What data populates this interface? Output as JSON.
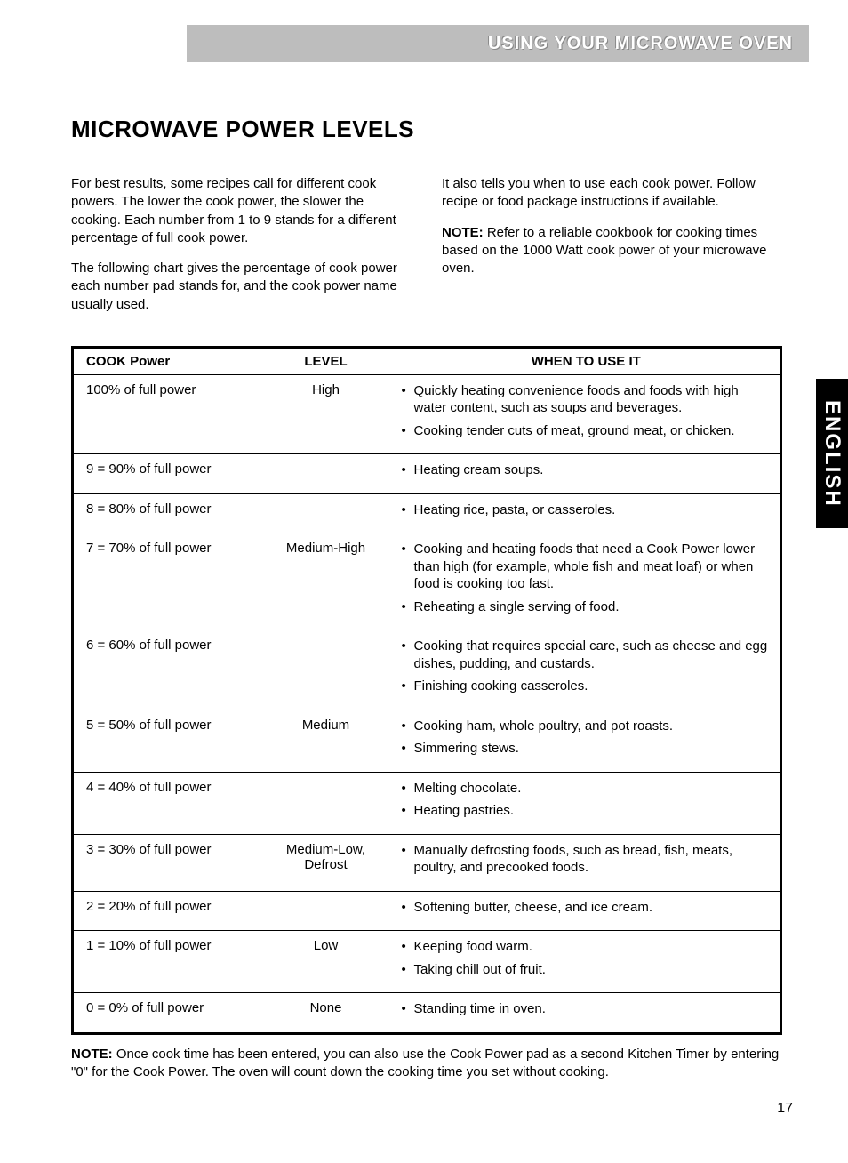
{
  "header": {
    "banner": "USING YOUR MICROWAVE OVEN"
  },
  "title": "MICROWAVE POWER LEVELS",
  "intro": {
    "left": [
      "For best results, some recipes call for different cook powers. The lower the cook power, the slower the cooking. Each number from 1 to 9 stands for a different percentage of full cook power.",
      "The following chart gives the percentage of cook power each number pad stands for, and the cook power name usually used."
    ],
    "right_p1": "It also tells you when to use each cook power.  Follow recipe or food package instructions if available.",
    "right_note_label": "NOTE:",
    "right_note_text": " Refer to a reliable cookbook for cooking times based on the 1000 Watt cook power of your microwave oven."
  },
  "table": {
    "columns": [
      "COOK Power",
      "LEVEL",
      "WHEN TO USE IT"
    ],
    "rows": [
      {
        "power": "100% of full power",
        "level": "High",
        "uses": [
          "Quickly heating convenience foods and foods with high water content, such as soups and beverages.",
          "Cooking tender cuts of meat, ground meat, or chicken."
        ]
      },
      {
        "power": "9 = 90% of full power",
        "level": "",
        "uses": [
          "Heating cream soups."
        ]
      },
      {
        "power": "8 = 80% of full power",
        "level": "",
        "uses": [
          "Heating rice, pasta, or casseroles."
        ]
      },
      {
        "power": "7 = 70% of full power",
        "level": "Medium-High",
        "uses": [
          "Cooking and heating foods that need a Cook Power lower than high (for example, whole fish and meat loaf) or when food is cooking too fast.",
          "Reheating a single serving of food."
        ]
      },
      {
        "power": "6 = 60% of full power",
        "level": "",
        "uses": [
          "Cooking that requires special care, such as cheese and egg dishes, pudding, and custards.",
          "Finishing cooking casseroles."
        ]
      },
      {
        "power": "5 = 50% of full power",
        "level": "Medium",
        "uses": [
          "Cooking ham, whole poultry, and pot roasts.",
          "Simmering stews."
        ]
      },
      {
        "power": "4 = 40% of full power",
        "level": "",
        "uses": [
          "Melting chocolate.",
          "Heating pastries."
        ]
      },
      {
        "power": "3 = 30% of full power",
        "level": "Medium-Low, Defrost",
        "uses": [
          "Manually defrosting foods, such as bread, fish, meats, poultry, and precooked foods."
        ]
      },
      {
        "power": "2 = 20% of full power",
        "level": "",
        "uses": [
          "Softening butter, cheese, and ice cream."
        ]
      },
      {
        "power": "1 = 10% of full power",
        "level": "Low",
        "uses": [
          "Keeping food warm.",
          "Taking chill out of fruit."
        ]
      },
      {
        "power": "0 = 0% of full power",
        "level": "None",
        "uses": [
          " Standing time in oven."
        ]
      }
    ]
  },
  "footnote_label": "NOTE:",
  "footnote_text": " Once cook time has been entered, you can also use the Cook Power pad as a second Kitchen Timer by entering \"0\" for the Cook Power. The oven will count down the cooking time you set without cooking.",
  "side_tab": "ENGLISH",
  "page_number": "17"
}
